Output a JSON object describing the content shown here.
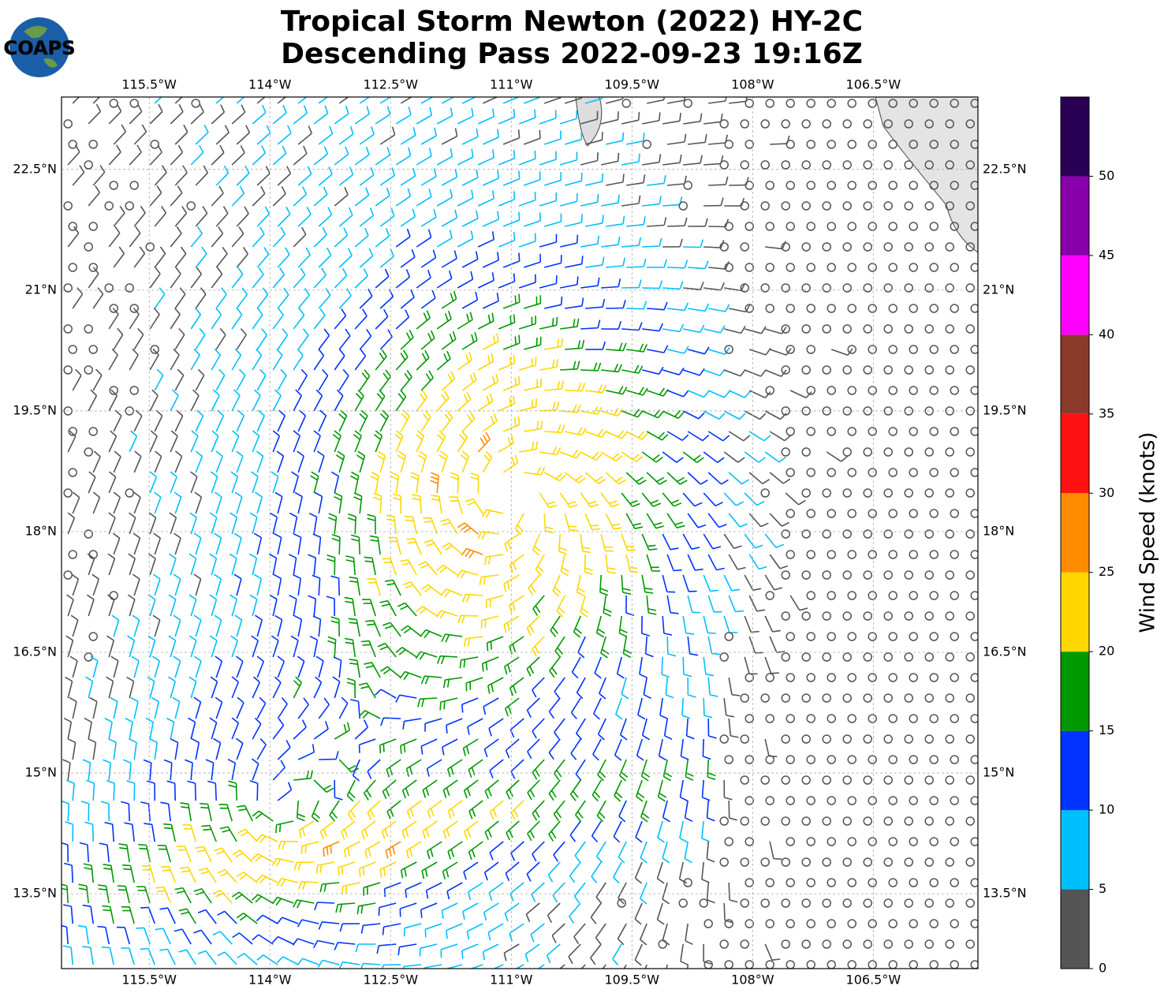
{
  "header": {
    "logo": "COAPS",
    "title": [
      "Tropical Storm Newton (2022) HY-2C",
      "Descending Pass 2022-09-23 19:16Z"
    ]
  },
  "map": {
    "lonlim": [
      -116.59,
      -105.2
    ],
    "latlim": [
      12.57,
      23.4
    ],
    "lon_ticks": [
      {
        "value": -115.5,
        "label": "115.5°W"
      },
      {
        "value": -114,
        "label": "114°W"
      },
      {
        "value": -112.5,
        "label": "112.5°W"
      },
      {
        "value": -111,
        "label": "111°W"
      },
      {
        "value": -109.5,
        "label": "109.5°W"
      },
      {
        "value": -108,
        "label": "108°W"
      },
      {
        "value": -106.5,
        "label": "106.5°W"
      }
    ],
    "lat_ticks": [
      {
        "value": 22.5,
        "label": "22.5°N"
      },
      {
        "value": 21,
        "label": "21°N"
      },
      {
        "value": 19.5,
        "label": "19.5°N"
      },
      {
        "value": 18,
        "label": "18°N"
      },
      {
        "value": 16.5,
        "label": "16.5°N"
      },
      {
        "value": 15,
        "label": "15°N"
      },
      {
        "value": 13.5,
        "label": "13.5°N"
      }
    ],
    "grid": true
  },
  "colorbar": {
    "label": "Wind Speed (knots)",
    "lim": [
      0,
      55
    ],
    "ticks": [
      0,
      5,
      10,
      15,
      20,
      25,
      30,
      35,
      40,
      45,
      50
    ],
    "bins": [
      0,
      5,
      10,
      15,
      20,
      25,
      30,
      35,
      40,
      45,
      50,
      55
    ],
    "colors": [
      "#555555",
      "#00bfff",
      "#0033ff",
      "#009900",
      "#ffd700",
      "#ff8c00",
      "#ff1111",
      "#8b3a2a",
      "#ff00ff",
      "#8800aa",
      "#2a0055"
    ]
  }
}
